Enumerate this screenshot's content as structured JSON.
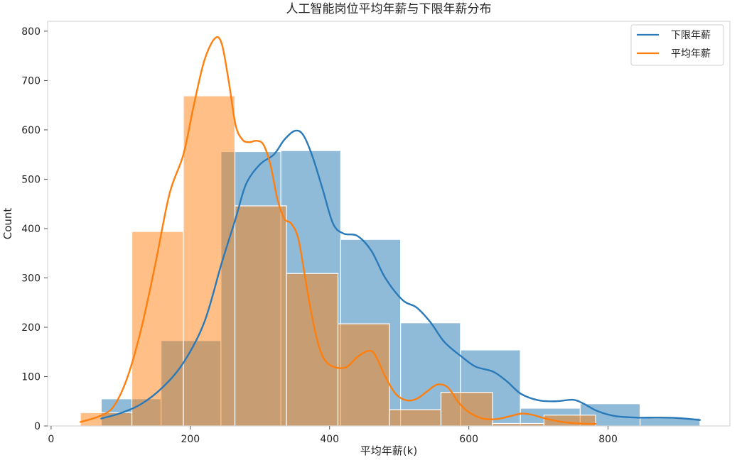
{
  "chart_data": {
    "type": "histogram",
    "title": "人工智能岗位平均年薪与下限年薪分布",
    "xlabel": "平均年薪(k)",
    "ylabel": "Count",
    "xlim": [
      -5,
      975
    ],
    "ylim": [
      0,
      820
    ],
    "x_ticks": [
      0,
      200,
      400,
      600,
      800
    ],
    "y_ticks": [
      0,
      100,
      200,
      300,
      400,
      500,
      600,
      700,
      800
    ],
    "grid": false,
    "legend_position": "top-right",
    "legend": [
      "下限年薪",
      "平均年薪"
    ],
    "colors": {
      "lower_bar": "#1f77b4",
      "avg_bar": "#ff7f0e",
      "lower_line": "#2a7ab9",
      "avg_line": "#ff7f0e"
    },
    "series": [
      {
        "name": "下限年薪",
        "kind": "histogram",
        "bins": [
          {
            "x0": 72,
            "x1": 158,
            "count": 55
          },
          {
            "x0": 158,
            "x1": 244,
            "count": 173
          },
          {
            "x0": 244,
            "x1": 330,
            "count": 556
          },
          {
            "x0": 330,
            "x1": 416,
            "count": 558
          },
          {
            "x0": 416,
            "x1": 502,
            "count": 378
          },
          {
            "x0": 502,
            "x1": 588,
            "count": 209
          },
          {
            "x0": 588,
            "x1": 674,
            "count": 154
          },
          {
            "x0": 674,
            "x1": 760,
            "count": 36
          },
          {
            "x0": 760,
            "x1": 846,
            "count": 45
          },
          {
            "x0": 846,
            "x1": 932,
            "count": 16
          }
        ]
      },
      {
        "name": "平均年薪",
        "kind": "histogram",
        "bins": [
          {
            "x0": 42,
            "x1": 116,
            "count": 27
          },
          {
            "x0": 116,
            "x1": 190,
            "count": 394
          },
          {
            "x0": 190,
            "x1": 264,
            "count": 669
          },
          {
            "x0": 264,
            "x1": 338,
            "count": 446
          },
          {
            "x0": 338,
            "x1": 412,
            "count": 309
          },
          {
            "x0": 412,
            "x1": 486,
            "count": 207
          },
          {
            "x0": 486,
            "x1": 560,
            "count": 33
          },
          {
            "x0": 560,
            "x1": 634,
            "count": 68
          },
          {
            "x0": 634,
            "x1": 708,
            "count": 5
          },
          {
            "x0": 708,
            "x1": 782,
            "count": 22
          }
        ]
      },
      {
        "name": "下限年薪",
        "kind": "kde",
        "points": [
          [
            72,
            15
          ],
          [
            100,
            26
          ],
          [
            130,
            45
          ],
          [
            160,
            78
          ],
          [
            190,
            128
          ],
          [
            220,
            210
          ],
          [
            245,
            330
          ],
          [
            265,
            420
          ],
          [
            280,
            490
          ],
          [
            300,
            530
          ],
          [
            320,
            550
          ],
          [
            335,
            580
          ],
          [
            350,
            598
          ],
          [
            362,
            590
          ],
          [
            375,
            548
          ],
          [
            390,
            480
          ],
          [
            405,
            410
          ],
          [
            420,
            390
          ],
          [
            440,
            385
          ],
          [
            460,
            355
          ],
          [
            480,
            300
          ],
          [
            505,
            255
          ],
          [
            525,
            240
          ],
          [
            545,
            210
          ],
          [
            565,
            170
          ],
          [
            590,
            140
          ],
          [
            610,
            120
          ],
          [
            635,
            110
          ],
          [
            655,
            90
          ],
          [
            675,
            65
          ],
          [
            700,
            52
          ],
          [
            725,
            50
          ],
          [
            750,
            53
          ],
          [
            765,
            45
          ],
          [
            785,
            30
          ],
          [
            810,
            20
          ],
          [
            840,
            17
          ],
          [
            870,
            17
          ],
          [
            900,
            16
          ],
          [
            932,
            12
          ]
        ]
      },
      {
        "name": "平均年薪",
        "kind": "kde",
        "points": [
          [
            42,
            8
          ],
          [
            70,
            20
          ],
          [
            90,
            40
          ],
          [
            110,
            100
          ],
          [
            130,
            200
          ],
          [
            150,
            330
          ],
          [
            170,
            470
          ],
          [
            190,
            550
          ],
          [
            205,
            650
          ],
          [
            220,
            740
          ],
          [
            235,
            785
          ],
          [
            245,
            775
          ],
          [
            255,
            700
          ],
          [
            265,
            610
          ],
          [
            275,
            580
          ],
          [
            285,
            575
          ],
          [
            295,
            578
          ],
          [
            305,
            570
          ],
          [
            315,
            530
          ],
          [
            325,
            460
          ],
          [
            335,
            420
          ],
          [
            345,
            410
          ],
          [
            355,
            380
          ],
          [
            365,
            300
          ],
          [
            375,
            220
          ],
          [
            385,
            160
          ],
          [
            395,
            130
          ],
          [
            410,
            118
          ],
          [
            425,
            120
          ],
          [
            440,
            140
          ],
          [
            455,
            152
          ],
          [
            465,
            145
          ],
          [
            480,
            100
          ],
          [
            495,
            65
          ],
          [
            510,
            52
          ],
          [
            525,
            55
          ],
          [
            540,
            70
          ],
          [
            555,
            84
          ],
          [
            570,
            78
          ],
          [
            585,
            48
          ],
          [
            600,
            28
          ],
          [
            620,
            15
          ],
          [
            640,
            14
          ],
          [
            660,
            20
          ],
          [
            675,
            25
          ],
          [
            690,
            23
          ],
          [
            710,
            15
          ],
          [
            735,
            8
          ],
          [
            760,
            5
          ],
          [
            782,
            4
          ]
        ]
      }
    ]
  }
}
